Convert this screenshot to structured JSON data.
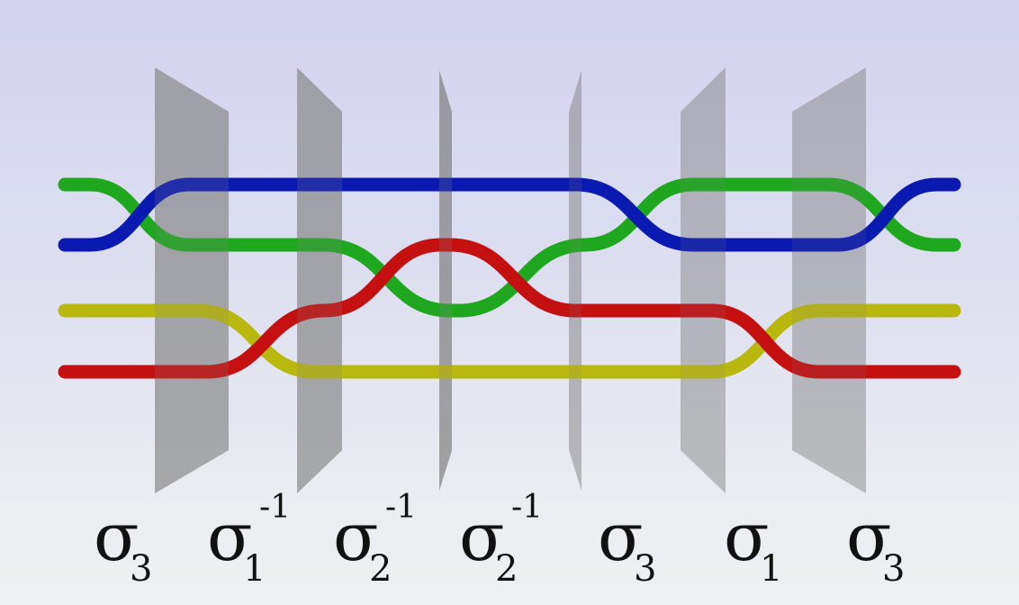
{
  "strand_colors": {
    "green": "#1fa81f",
    "blue": "#0a1ab0",
    "yellow": "#b8b80f",
    "red": "#c41010"
  },
  "plane_color": "#808080",
  "generators": [
    {
      "symbol": "σ",
      "index": "3",
      "exponent": ""
    },
    {
      "symbol": "σ",
      "index": "1",
      "exponent": "-1"
    },
    {
      "symbol": "σ",
      "index": "2",
      "exponent": "-1"
    },
    {
      "symbol": "σ",
      "index": "2",
      "exponent": "-1"
    },
    {
      "symbol": "σ",
      "index": "3",
      "exponent": ""
    },
    {
      "symbol": "σ",
      "index": "1",
      "exponent": ""
    },
    {
      "symbol": "σ",
      "index": "3",
      "exponent": ""
    }
  ]
}
